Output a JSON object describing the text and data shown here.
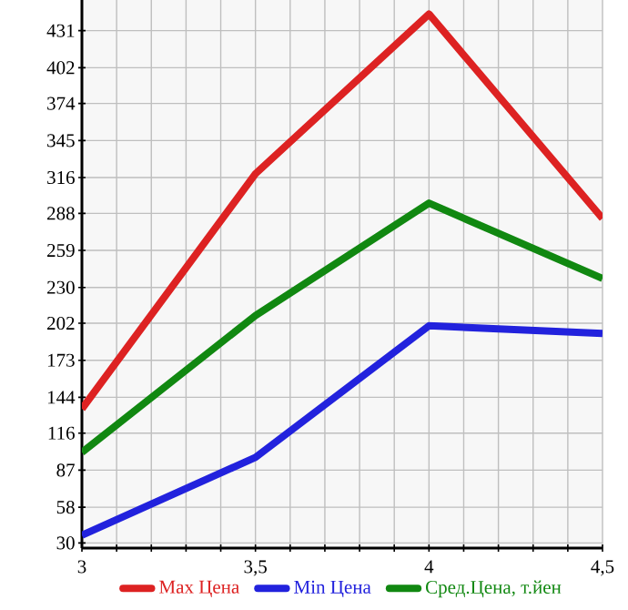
{
  "chart_data": {
    "type": "line",
    "x": [
      3,
      3.5,
      4,
      4.5
    ],
    "series": [
      {
        "name": "Max Цена",
        "color": "#dd2222",
        "values": [
          135,
          319,
          444,
          284
        ]
      },
      {
        "name": "Min Цена",
        "color": "#2222dd",
        "values": [
          36,
          97,
          200,
          194
        ]
      },
      {
        "name": "Сред.Цена, т.йен",
        "color": "#118811",
        "values": [
          101,
          208,
          296,
          237
        ]
      }
    ],
    "xlim": [
      3,
      4.5
    ],
    "xticks": [
      3,
      {
        "value": 3.1,
        "label": null
      },
      {
        "value": 3.2,
        "label": null
      },
      {
        "value": 3.3,
        "label": null
      },
      {
        "value": 3.4,
        "label": null
      },
      {
        "value": 3.5,
        "label": "3,5"
      },
      {
        "value": 3.6,
        "label": null
      },
      {
        "value": 3.7,
        "label": null
      },
      {
        "value": 3.8,
        "label": null
      },
      {
        "value": 3.9,
        "label": null
      },
      4,
      {
        "value": 4.1,
        "label": null
      },
      {
        "value": 4.2,
        "label": null
      },
      {
        "value": 4.3,
        "label": null
      },
      {
        "value": 4.4,
        "label": null
      },
      {
        "value": 4.5,
        "label": "4,5"
      }
    ],
    "ylim": [
      26,
      455
    ],
    "yticks": [
      30,
      58,
      87,
      116,
      144,
      173,
      202,
      230,
      259,
      288,
      316,
      345,
      374,
      402,
      431
    ],
    "grid": true,
    "legend": "bottom",
    "marker": "none",
    "line_style": "solid"
  }
}
